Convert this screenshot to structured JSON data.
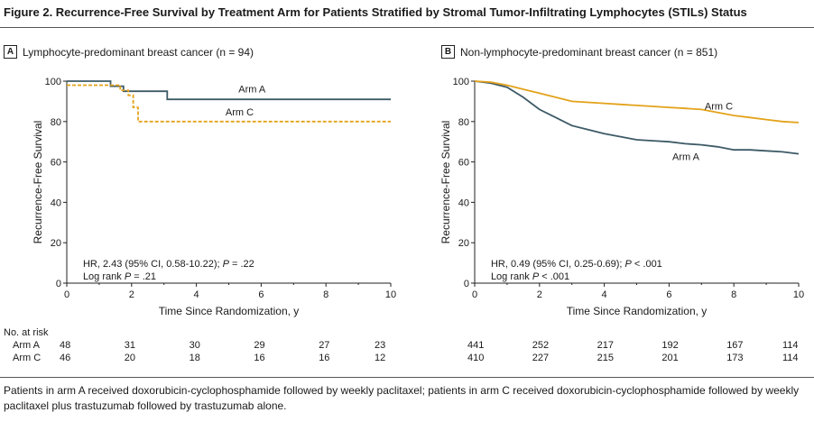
{
  "figure_title": "Figure 2. Recurrence-Free Survival by Treatment Arm for Patients Stratified by Stromal Tumor-Infiltrating Lymphocytes (STILs) Status",
  "caption": "Patients in arm A received doxorubicin-cyclophosphamide followed by weekly paclitaxel; patients in arm C received doxorubicin-cyclophosphamide followed by weekly paclitaxel plus trastuzumab followed by trastuzumab alone.",
  "colors": {
    "arm_a": "#3d5a66",
    "arm_c": "#e3a21a",
    "axis": "#222222"
  },
  "risk_table": {
    "header": "No. at risk",
    "arm_labels": [
      "Arm A",
      "Arm C"
    ]
  },
  "chart_data": [
    {
      "type": "line",
      "panel_letter": "A",
      "title": "Lymphocyte-predominant breast cancer (n = 94)",
      "xlabel": "Time Since Randomization, y",
      "ylabel": "Recurrence-Free Survival",
      "xlim": [
        0,
        10
      ],
      "ylim": [
        0,
        100
      ],
      "xticks": [
        0,
        2,
        4,
        6,
        8,
        10
      ],
      "yticks": [
        0,
        20,
        40,
        60,
        80,
        100
      ],
      "series": [
        {
          "name": "Arm A",
          "color": "#3d5a66",
          "dash": false,
          "x": [
            0,
            1.35,
            1.35,
            1.75,
            1.75,
            3.1,
            3.1,
            10
          ],
          "y": [
            100,
            100,
            97.5,
            97.5,
            95,
            95,
            91,
            91
          ]
        },
        {
          "name": "Arm C",
          "color": "#e3a21a",
          "dash": true,
          "x": [
            0,
            1.65,
            1.65,
            1.9,
            1.9,
            2.05,
            2.05,
            2.2,
            2.2,
            10
          ],
          "y": [
            98,
            98,
            95.5,
            95.5,
            93,
            93,
            87,
            87,
            80,
            80
          ]
        }
      ],
      "annotation_lines": [
        "HR, 2.43 (95% CI, 0.58-10.22); P = .22",
        "Log rank P = .21"
      ],
      "at_risk": {
        "times": [
          0,
          2,
          4,
          6,
          8,
          10
        ],
        "Arm A": [
          48,
          31,
          30,
          29,
          27,
          23
        ],
        "Arm C": [
          46,
          20,
          18,
          16,
          16,
          12
        ]
      }
    },
    {
      "type": "line",
      "panel_letter": "B",
      "title": "Non-lymphocyte-predominant breast cancer (n = 851)",
      "xlabel": "Time Since Randomization, y",
      "ylabel": "Recurrence-Free Survival",
      "xlim": [
        0,
        10
      ],
      "ylim": [
        0,
        100
      ],
      "xticks": [
        0,
        2,
        4,
        6,
        8,
        10
      ],
      "yticks": [
        0,
        20,
        40,
        60,
        80,
        100
      ],
      "series": [
        {
          "name": "Arm A",
          "color": "#3d5a66",
          "dash": false,
          "x": [
            0,
            0.5,
            1,
            1.5,
            2,
            2.5,
            3,
            3.5,
            4,
            4.5,
            5,
            5.5,
            6,
            6.5,
            7,
            7.5,
            8,
            8.5,
            9,
            9.5,
            10
          ],
          "y": [
            100,
            99,
            97,
            92,
            86,
            82,
            78,
            76,
            74,
            72.5,
            71,
            70.5,
            70,
            69,
            68.5,
            67.5,
            66,
            66,
            65.5,
            65,
            64
          ]
        },
        {
          "name": "Arm C",
          "color": "#e3a21a",
          "dash": false,
          "x": [
            0,
            0.5,
            1,
            1.5,
            2,
            2.5,
            3,
            3.5,
            4,
            4.5,
            5,
            5.5,
            6,
            6.5,
            7,
            7.5,
            8,
            8.5,
            9,
            9.5,
            10
          ],
          "y": [
            100,
            99.5,
            98,
            96,
            94,
            92,
            90,
            89.5,
            89,
            88.5,
            88,
            87.5,
            87,
            86.5,
            86,
            84.5,
            83,
            82,
            81,
            80,
            79.5
          ]
        }
      ],
      "annotation_lines": [
        "HR, 0.49 (95% CI, 0.25-0.69); P < .001",
        "Log rank P < .001"
      ],
      "at_risk": {
        "times": [
          0,
          2,
          4,
          6,
          8,
          10
        ],
        "Arm A": [
          441,
          252,
          217,
          192,
          167,
          114
        ],
        "Arm C": [
          410,
          227,
          215,
          201,
          173,
          114
        ]
      }
    }
  ]
}
